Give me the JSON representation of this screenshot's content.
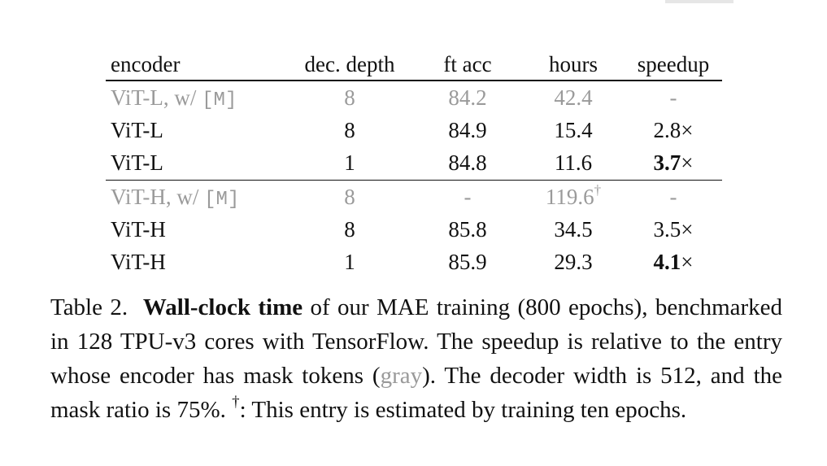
{
  "table": {
    "headers": [
      "encoder",
      "dec. depth",
      "ft acc",
      "hours",
      "speedup"
    ],
    "rows": [
      {
        "encoder": "ViT-L, w/",
        "mask_token": "[M]",
        "dec_depth": "8",
        "ft_acc": "84.2",
        "hours": "42.4",
        "hours_mark": "",
        "speedup": "-",
        "gray": true
      },
      {
        "encoder": "ViT-L",
        "mask_token": "",
        "dec_depth": "8",
        "ft_acc": "84.9",
        "hours": "15.4",
        "hours_mark": "",
        "speedup": "2.8",
        "speedup_unit": "×",
        "bold": false
      },
      {
        "encoder": "ViT-L",
        "mask_token": "",
        "dec_depth": "1",
        "ft_acc": "84.8",
        "hours": "11.6",
        "hours_mark": "",
        "speedup": "3.7",
        "speedup_unit": "×",
        "bold": true
      },
      {
        "encoder": "ViT-H, w/",
        "mask_token": "[M]",
        "dec_depth": "8",
        "ft_acc": "-",
        "hours": "119.6",
        "hours_mark": "†",
        "speedup": "-",
        "gray": true
      },
      {
        "encoder": "ViT-H",
        "mask_token": "",
        "dec_depth": "8",
        "ft_acc": "85.8",
        "hours": "34.5",
        "hours_mark": "",
        "speedup": "3.5",
        "speedup_unit": "×",
        "bold": false
      },
      {
        "encoder": "ViT-H",
        "mask_token": "",
        "dec_depth": "1",
        "ft_acc": "85.9",
        "hours": "29.3",
        "hours_mark": "",
        "speedup": "4.1",
        "speedup_unit": "×",
        "bold": true
      }
    ],
    "gray_color": "#9a9a9a"
  },
  "caption": {
    "label": "Table 2.",
    "bold_title": "Wall-clock time",
    "text_1": "of our MAE training (800 epochs), benchmarked in 128 TPU-v3 cores with TensorFlow. The speedup is relative to the entry whose encoder has mask tokens (",
    "gray_word": "gray",
    "text_2": "). The decoder width is 512, and the mask ratio is 75%.",
    "dagger": "†",
    "text_3": ": This entry is estimated by training ten epochs."
  }
}
